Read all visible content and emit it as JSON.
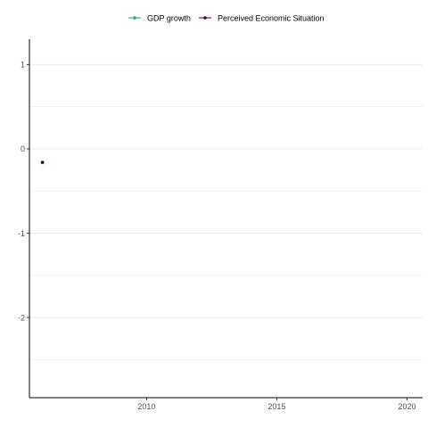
{
  "chart_data": {
    "type": "line",
    "xlim": [
      2005.5,
      2020.6
    ],
    "ylim": [
      -2.95,
      1.3
    ],
    "x_ticks": [
      2010,
      2015,
      2020
    ],
    "x_tick_labels": [
      "2010",
      "2015",
      "2020"
    ],
    "y_ticks": [
      1,
      0,
      -1,
      -2
    ],
    "y_tick_labels": [
      "1",
      "0",
      "-1",
      "-2"
    ],
    "y_minor_gridlines": [
      0.5,
      -0.5,
      -1.5,
      -2.5
    ],
    "grid": "horizontal",
    "legend_position": "top",
    "series": [
      {
        "name": "GDP growth",
        "color": "#1fa187",
        "points": []
      },
      {
        "name": "Perceived Economic Situation",
        "color": "#440154",
        "points": [
          {
            "x": 2006,
            "y": -0.16
          }
        ]
      }
    ]
  }
}
